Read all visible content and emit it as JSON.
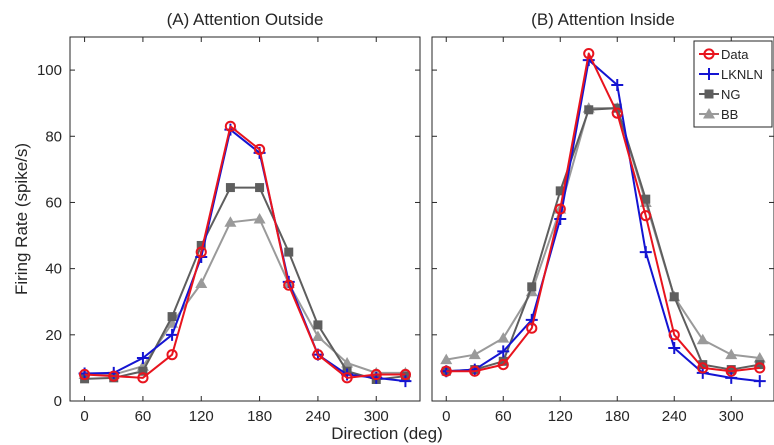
{
  "chart_data": {
    "type": "line",
    "xlabel": "Direction (deg)",
    "ylabel": "Firing Rate (spike/s)",
    "xlim": [
      -15,
      345
    ],
    "ylim": [
      0,
      110
    ],
    "xticks": [
      "0",
      "60",
      "120",
      "180",
      "240",
      "300"
    ],
    "yticks": [
      "0",
      "20",
      "40",
      "60",
      "80",
      "100"
    ],
    "legend": {
      "placement": "top-right",
      "panel": 1
    },
    "x": [
      0,
      30,
      60,
      90,
      120,
      150,
      180,
      210,
      240,
      270,
      300,
      330
    ],
    "series_styles": [
      {
        "color": "#e8141e",
        "marker": "circle"
      },
      {
        "color": "#1414d2",
        "marker": "plus"
      },
      {
        "color": "#5e5e5e",
        "marker": "square"
      },
      {
        "color": "#9a9a9a",
        "marker": "triangle"
      }
    ],
    "panels": [
      {
        "title": "(A) Attention Outside",
        "series": [
          {
            "name": "Data",
            "values": [
              8,
              7.5,
              7,
              14,
              45,
              83,
              76,
              35,
              14,
              7,
              8,
              8
            ]
          },
          {
            "name": "LKNLN",
            "values": [
              8.3,
              8.5,
              13,
              20,
              43.5,
              82,
              75,
              36,
              14,
              8,
              7,
              6
            ]
          },
          {
            "name": "NG",
            "values": [
              6.7,
              7,
              9,
              25.5,
              47,
              64.5,
              64.5,
              45,
              23,
              9,
              6.5,
              7.5
            ]
          },
          {
            "name": "BB",
            "values": [
              8,
              8,
              10.5,
              23.5,
              35.5,
              54,
              55,
              35.5,
              19.5,
              11.5,
              8.5,
              8.5
            ]
          }
        ]
      },
      {
        "title": "(B) Attention Inside",
        "series": [
          {
            "name": "Data",
            "values": [
              9,
              9,
              11,
              22,
              58,
              105,
              87,
              56,
              20,
              10,
              9,
              10
            ]
          },
          {
            "name": "LKNLN",
            "values": [
              9,
              9.5,
              15,
              24.5,
              55,
              103,
              95.5,
              45,
              16,
              8.5,
              7,
              6
            ]
          },
          {
            "name": "NG",
            "values": [
              9,
              9.5,
              12,
              34.5,
              63.5,
              88,
              88.5,
              61,
              31.5,
              11,
              9.5,
              11
            ]
          },
          {
            "name": "BB",
            "values": [
              12.5,
              14,
              19,
              33,
              58,
              88.5,
              88.5,
              60,
              31.5,
              18.5,
              14,
              13
            ]
          }
        ]
      }
    ]
  }
}
